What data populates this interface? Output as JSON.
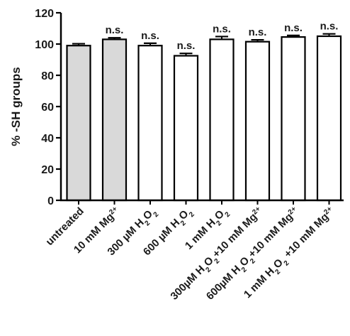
{
  "chart_data": {
    "type": "bar",
    "ylabel": "% -SH groups",
    "xlabel": "",
    "title": "",
    "ylim": [
      0,
      120
    ],
    "yticks": [
      0,
      20,
      40,
      60,
      80,
      100,
      120
    ],
    "grid": false,
    "categories": [
      "untreated",
      "10 mM Mg2+",
      "300 µM H2O2",
      "600 µM H2O2",
      "1 mM H2O2",
      "300µM H2O2+10 mM Mg2+",
      "600µM H2O2+10 mM Mg2+",
      "1 mM H2O2 +10 mM Mg2+"
    ],
    "category_rich": [
      [
        {
          "t": "untreated"
        }
      ],
      [
        {
          "t": "10 mM Mg"
        },
        {
          "t": "2+",
          "s": "sup"
        }
      ],
      [
        {
          "t": "300 µM H"
        },
        {
          "t": "2",
          "s": "sub"
        },
        {
          "t": "O"
        },
        {
          "t": "2",
          "s": "sub"
        }
      ],
      [
        {
          "t": "600 µM H"
        },
        {
          "t": "2",
          "s": "sub"
        },
        {
          "t": "O"
        },
        {
          "t": "2",
          "s": "sub"
        }
      ],
      [
        {
          "t": "1 mM H"
        },
        {
          "t": "2",
          "s": "sub"
        },
        {
          "t": "O"
        },
        {
          "t": "2",
          "s": "sub"
        }
      ],
      [
        {
          "t": "300µM H"
        },
        {
          "t": "2",
          "s": "sub"
        },
        {
          "t": "O"
        },
        {
          "t": "2",
          "s": "sub"
        },
        {
          "t": "+10 mM Mg"
        },
        {
          "t": "2+",
          "s": "sup"
        }
      ],
      [
        {
          "t": "600µM H"
        },
        {
          "t": "2",
          "s": "sub"
        },
        {
          "t": "O"
        },
        {
          "t": "2",
          "s": "sub"
        },
        {
          "t": "+10 mM Mg"
        },
        {
          "t": "2+",
          "s": "sup"
        }
      ],
      [
        {
          "t": "1 mM H"
        },
        {
          "t": "2",
          "s": "sub"
        },
        {
          "t": "O"
        },
        {
          "t": "2",
          "s": "sub"
        },
        {
          "t": " +10 mM Mg"
        },
        {
          "t": "2+",
          "s": "sup"
        }
      ]
    ],
    "values": [
      99,
      103,
      99,
      92.5,
      103,
      101.5,
      104.5,
      105
    ],
    "errors": [
      1.2,
      1.0,
      1.5,
      1.5,
      1.8,
      1.2,
      1.0,
      1.5
    ],
    "annotations": [
      "",
      "n.s.",
      "n.s.",
      "n.s.",
      "n.s.",
      "n.s.",
      "n.s.",
      "n.s."
    ],
    "bar_fill": [
      "#d9d9d9",
      "#d9d9d9",
      "#ffffff",
      "#ffffff",
      "#ffffff",
      "#ffffff",
      "#ffffff",
      "#ffffff"
    ],
    "bar_stroke": "#000000"
  }
}
